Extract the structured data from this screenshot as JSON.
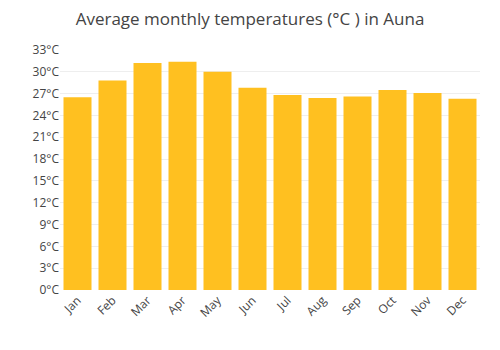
{
  "chart_data": {
    "type": "bar",
    "title": "Average monthly temperatures (°C ) in Auna",
    "categories": [
      "Jan",
      "Feb",
      "Mar",
      "Apr",
      "May",
      "Jun",
      "Jul",
      "Aug",
      "Sep",
      "Oct",
      "Nov",
      "Dec"
    ],
    "values": [
      26.5,
      28.8,
      31.2,
      31.4,
      30.0,
      27.8,
      26.8,
      26.4,
      26.6,
      27.5,
      27.1,
      26.3
    ],
    "color": "#FFC020",
    "ylim": [
      0,
      33
    ],
    "yticks": [
      {
        "value": 0,
        "label": "0°C"
      },
      {
        "value": 3,
        "label": "3°C"
      },
      {
        "value": 6,
        "label": "6°C"
      },
      {
        "value": 9,
        "label": "9°C"
      },
      {
        "value": 12,
        "label": "12°C"
      },
      {
        "value": 15,
        "label": "15°C"
      },
      {
        "value": 18,
        "label": "18°C"
      },
      {
        "value": 21,
        "label": "21°C"
      },
      {
        "value": 24,
        "label": "24°C"
      },
      {
        "value": 27,
        "label": "27°C"
      },
      {
        "value": 30,
        "label": "30°C"
      },
      {
        "value": 33,
        "label": "33°C"
      }
    ],
    "grid": true
  }
}
